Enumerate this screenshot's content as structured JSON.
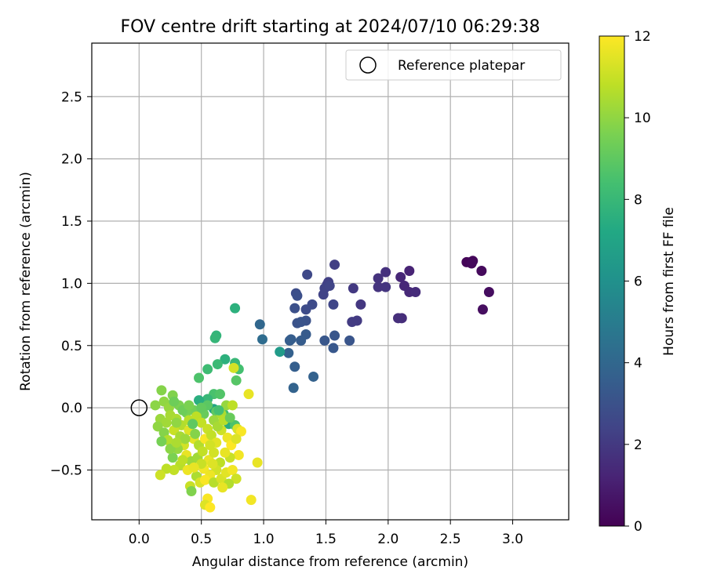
{
  "chart_data": {
    "type": "scatter",
    "title": "FOV centre drift starting at 2024/07/10 06:29:38",
    "xlabel": "Angular distance from reference (arcmin)",
    "ylabel": "Rotation from reference (arcmin)",
    "xlim": [
      -0.38,
      3.45
    ],
    "ylim": [
      -0.9,
      2.93
    ],
    "xticks": [
      0.0,
      0.5,
      1.0,
      1.5,
      2.0,
      2.5,
      3.0
    ],
    "xtick_labels": [
      "0.0",
      "0.5",
      "1.0",
      "1.5",
      "2.0",
      "2.5",
      "3.0"
    ],
    "yticks": [
      -0.5,
      0.0,
      0.5,
      1.0,
      1.5,
      2.0,
      2.5
    ],
    "ytick_labels": [
      "−0.5",
      "0.0",
      "0.5",
      "1.0",
      "1.5",
      "2.0",
      "2.5"
    ],
    "grid": true,
    "legend": {
      "position": "upper right",
      "entries": [
        "Reference platepar"
      ]
    },
    "reference_point": {
      "x": 0.0,
      "y": 0.0
    },
    "colorbar": {
      "label": "Hours from first FF file",
      "range": [
        0,
        12
      ],
      "ticks": [
        "0",
        "2",
        "4",
        "6",
        "8",
        "10",
        "12"
      ],
      "colormap": "viridis"
    },
    "points": [
      {
        "x": 2.66,
        "y": 1.17,
        "c": 0.1
      },
      {
        "x": 2.63,
        "y": 1.17,
        "c": 0.15
      },
      {
        "x": 2.68,
        "y": 1.18,
        "c": 0.2
      },
      {
        "x": 2.67,
        "y": 1.16,
        "c": 0.25
      },
      {
        "x": 2.75,
        "y": 1.1,
        "c": 0.3
      },
      {
        "x": 2.81,
        "y": 0.93,
        "c": 0.4
      },
      {
        "x": 2.76,
        "y": 0.79,
        "c": 0.45
      },
      {
        "x": 2.17,
        "y": 1.1,
        "c": 1.2
      },
      {
        "x": 2.1,
        "y": 1.05,
        "c": 1.3
      },
      {
        "x": 2.13,
        "y": 0.98,
        "c": 1.35
      },
      {
        "x": 2.17,
        "y": 0.93,
        "c": 1.4
      },
      {
        "x": 2.22,
        "y": 0.93,
        "c": 1.5
      },
      {
        "x": 2.11,
        "y": 0.72,
        "c": 1.55
      },
      {
        "x": 2.08,
        "y": 0.72,
        "c": 1.6
      },
      {
        "x": 1.98,
        "y": 1.09,
        "c": 1.7
      },
      {
        "x": 1.92,
        "y": 1.04,
        "c": 1.75
      },
      {
        "x": 1.92,
        "y": 0.97,
        "c": 1.8
      },
      {
        "x": 1.98,
        "y": 0.97,
        "c": 1.85
      },
      {
        "x": 1.78,
        "y": 0.83,
        "c": 1.9
      },
      {
        "x": 1.72,
        "y": 0.96,
        "c": 2.0
      },
      {
        "x": 1.75,
        "y": 0.7,
        "c": 2.05
      },
      {
        "x": 1.71,
        "y": 0.69,
        "c": 2.1
      },
      {
        "x": 1.57,
        "y": 1.15,
        "c": 2.2
      },
      {
        "x": 1.52,
        "y": 1.01,
        "c": 2.25
      },
      {
        "x": 1.51,
        "y": 0.99,
        "c": 2.3
      },
      {
        "x": 1.49,
        "y": 0.96,
        "c": 2.35
      },
      {
        "x": 1.48,
        "y": 0.91,
        "c": 2.4
      },
      {
        "x": 1.53,
        "y": 0.98,
        "c": 2.45
      },
      {
        "x": 1.56,
        "y": 0.83,
        "c": 2.5
      },
      {
        "x": 1.35,
        "y": 1.07,
        "c": 2.6
      },
      {
        "x": 1.39,
        "y": 0.83,
        "c": 2.7
      },
      {
        "x": 1.34,
        "y": 0.79,
        "c": 2.75
      },
      {
        "x": 1.26,
        "y": 0.92,
        "c": 2.8
      },
      {
        "x": 1.27,
        "y": 0.9,
        "c": 2.9
      },
      {
        "x": 1.25,
        "y": 0.8,
        "c": 2.95
      },
      {
        "x": 1.34,
        "y": 0.7,
        "c": 3.0
      },
      {
        "x": 1.27,
        "y": 0.68,
        "c": 3.05
      },
      {
        "x": 1.3,
        "y": 0.69,
        "c": 3.1
      },
      {
        "x": 1.69,
        "y": 0.54,
        "c": 3.15
      },
      {
        "x": 1.57,
        "y": 0.58,
        "c": 3.2
      },
      {
        "x": 1.49,
        "y": 0.54,
        "c": 3.25
      },
      {
        "x": 1.56,
        "y": 0.48,
        "c": 3.3
      },
      {
        "x": 1.34,
        "y": 0.59,
        "c": 3.4
      },
      {
        "x": 1.3,
        "y": 0.54,
        "c": 3.45
      },
      {
        "x": 1.22,
        "y": 0.55,
        "c": 3.5
      },
      {
        "x": 1.21,
        "y": 0.54,
        "c": 3.55
      },
      {
        "x": 1.25,
        "y": 0.33,
        "c": 3.6
      },
      {
        "x": 1.2,
        "y": 0.44,
        "c": 3.7
      },
      {
        "x": 1.4,
        "y": 0.25,
        "c": 3.75
      },
      {
        "x": 1.24,
        "y": 0.16,
        "c": 3.8
      },
      {
        "x": 0.97,
        "y": 0.67,
        "c": 4.0
      },
      {
        "x": 0.99,
        "y": 0.55,
        "c": 4.2
      },
      {
        "x": 1.13,
        "y": 0.45,
        "c": 6.5
      },
      {
        "x": 0.77,
        "y": 0.8,
        "c": 7.6
      },
      {
        "x": 0.62,
        "y": 0.58,
        "c": 7.8
      },
      {
        "x": 0.61,
        "y": 0.56,
        "c": 7.9
      },
      {
        "x": 0.69,
        "y": 0.39,
        "c": 7.6
      },
      {
        "x": 0.77,
        "y": 0.36,
        "c": 8.0
      },
      {
        "x": 0.63,
        "y": 0.35,
        "c": 8.1
      },
      {
        "x": 0.55,
        "y": 0.31,
        "c": 8.2
      },
      {
        "x": 0.8,
        "y": 0.31,
        "c": 8.4
      },
      {
        "x": 0.48,
        "y": 0.24,
        "c": 8.6
      },
      {
        "x": 0.78,
        "y": 0.22,
        "c": 8.8
      },
      {
        "x": 0.6,
        "y": 0.11,
        "c": 8.5
      },
      {
        "x": 0.65,
        "y": 0.11,
        "c": 8.7
      },
      {
        "x": 0.55,
        "y": 0.07,
        "c": 8.0
      },
      {
        "x": 0.48,
        "y": 0.06,
        "c": 7.5
      },
      {
        "x": 0.76,
        "y": 0.32,
        "c": 11.2
      },
      {
        "x": 0.88,
        "y": 0.11,
        "c": 11.6
      },
      {
        "x": 0.6,
        "y": -0.01,
        "c": 7.0
      },
      {
        "x": 0.72,
        "y": -0.13,
        "c": 7.4
      },
      {
        "x": 0.77,
        "y": -0.14,
        "c": 8.6
      },
      {
        "x": 0.68,
        "y": -0.05,
        "c": 8.2
      },
      {
        "x": 0.62,
        "y": -0.03,
        "c": 9.0
      },
      {
        "x": 0.52,
        "y": -0.05,
        "c": 9.2
      },
      {
        "x": 0.44,
        "y": -0.02,
        "c": 9.4
      },
      {
        "x": 0.38,
        "y": -0.04,
        "c": 9.5
      },
      {
        "x": 0.32,
        "y": 0.02,
        "c": 9.6
      },
      {
        "x": 0.27,
        "y": 0.1,
        "c": 9.7
      },
      {
        "x": 0.18,
        "y": 0.14,
        "c": 9.8
      },
      {
        "x": 0.13,
        "y": 0.02,
        "c": 9.9
      },
      {
        "x": 0.2,
        "y": 0.05,
        "c": 10.0
      },
      {
        "x": 0.24,
        "y": 0.0,
        "c": 10.1
      },
      {
        "x": 0.17,
        "y": -0.09,
        "c": 10.2
      },
      {
        "x": 0.22,
        "y": -0.12,
        "c": 10.3
      },
      {
        "x": 0.25,
        "y": -0.06,
        "c": 10.4
      },
      {
        "x": 0.3,
        "y": -0.09,
        "c": 10.5
      },
      {
        "x": 0.34,
        "y": -0.14,
        "c": 10.6
      },
      {
        "x": 0.4,
        "y": -0.1,
        "c": 10.7
      },
      {
        "x": 0.46,
        "y": -0.07,
        "c": 10.8
      },
      {
        "x": 0.5,
        "y": -0.12,
        "c": 10.9
      },
      {
        "x": 0.55,
        "y": -0.17,
        "c": 11.0
      },
      {
        "x": 0.6,
        "y": -0.1,
        "c": 10.2
      },
      {
        "x": 0.66,
        "y": -0.05,
        "c": 10.5
      },
      {
        "x": 0.7,
        "y": 0.02,
        "c": 10.1
      },
      {
        "x": 0.75,
        "y": 0.02,
        "c": 10.8
      },
      {
        "x": 0.15,
        "y": -0.15,
        "c": 10.0
      },
      {
        "x": 0.2,
        "y": -0.2,
        "c": 9.8
      },
      {
        "x": 0.23,
        "y": -0.26,
        "c": 10.6
      },
      {
        "x": 0.18,
        "y": -0.27,
        "c": 9.5
      },
      {
        "x": 0.28,
        "y": -0.18,
        "c": 11.0
      },
      {
        "x": 0.33,
        "y": -0.23,
        "c": 10.4
      },
      {
        "x": 0.36,
        "y": -0.3,
        "c": 11.2
      },
      {
        "x": 0.31,
        "y": -0.33,
        "c": 10.1
      },
      {
        "x": 0.27,
        "y": -0.4,
        "c": 9.6
      },
      {
        "x": 0.33,
        "y": -0.46,
        "c": 10.7
      },
      {
        "x": 0.28,
        "y": -0.5,
        "c": 10.9
      },
      {
        "x": 0.22,
        "y": -0.49,
        "c": 10.8
      },
      {
        "x": 0.17,
        "y": -0.54,
        "c": 11.1
      },
      {
        "x": 0.4,
        "y": -0.18,
        "c": 11.4
      },
      {
        "x": 0.44,
        "y": -0.25,
        "c": 11.5
      },
      {
        "x": 0.38,
        "y": -0.38,
        "c": 11.6
      },
      {
        "x": 0.42,
        "y": -0.43,
        "c": 10.2
      },
      {
        "x": 0.39,
        "y": -0.5,
        "c": 11.7
      },
      {
        "x": 0.46,
        "y": -0.55,
        "c": 10.5
      },
      {
        "x": 0.41,
        "y": -0.63,
        "c": 11.0
      },
      {
        "x": 0.42,
        "y": -0.67,
        "c": 9.7
      },
      {
        "x": 0.49,
        "y": -0.6,
        "c": 11.3
      },
      {
        "x": 0.52,
        "y": -0.49,
        "c": 11.8
      },
      {
        "x": 0.56,
        "y": -0.42,
        "c": 11.6
      },
      {
        "x": 0.6,
        "y": -0.36,
        "c": 11.2
      },
      {
        "x": 0.48,
        "y": -0.3,
        "c": 10.6
      },
      {
        "x": 0.53,
        "y": -0.25,
        "c": 11.9
      },
      {
        "x": 0.58,
        "y": -0.22,
        "c": 10.9
      },
      {
        "x": 0.62,
        "y": -0.28,
        "c": 11.5
      },
      {
        "x": 0.66,
        "y": -0.18,
        "c": 11.1
      },
      {
        "x": 0.71,
        "y": -0.24,
        "c": 11.7
      },
      {
        "x": 0.74,
        "y": -0.3,
        "c": 12.0
      },
      {
        "x": 0.79,
        "y": -0.17,
        "c": 11.3
      },
      {
        "x": 0.82,
        "y": -0.19,
        "c": 11.9
      },
      {
        "x": 0.78,
        "y": -0.25,
        "c": 11.4
      },
      {
        "x": 0.8,
        "y": -0.38,
        "c": 11.8
      },
      {
        "x": 0.73,
        "y": -0.4,
        "c": 11.0
      },
      {
        "x": 0.69,
        "y": -0.36,
        "c": 11.6
      },
      {
        "x": 0.65,
        "y": -0.44,
        "c": 10.8
      },
      {
        "x": 0.62,
        "y": -0.5,
        "c": 11.2
      },
      {
        "x": 0.57,
        "y": -0.54,
        "c": 11.7
      },
      {
        "x": 0.53,
        "y": -0.58,
        "c": 11.9
      },
      {
        "x": 0.6,
        "y": -0.6,
        "c": 10.7
      },
      {
        "x": 0.66,
        "y": -0.57,
        "c": 11.3
      },
      {
        "x": 0.7,
        "y": -0.52,
        "c": 11.5
      },
      {
        "x": 0.75,
        "y": -0.5,
        "c": 11.8
      },
      {
        "x": 0.78,
        "y": -0.57,
        "c": 11.1
      },
      {
        "x": 0.72,
        "y": -0.61,
        "c": 10.6
      },
      {
        "x": 0.67,
        "y": -0.64,
        "c": 11.6
      },
      {
        "x": 0.55,
        "y": -0.73,
        "c": 11.9
      },
      {
        "x": 0.53,
        "y": -0.78,
        "c": 11.4
      },
      {
        "x": 0.57,
        "y": -0.8,
        "c": 12.0
      },
      {
        "x": 0.95,
        "y": -0.44,
        "c": 11.6
      },
      {
        "x": 0.9,
        "y": -0.74,
        "c": 11.8
      },
      {
        "x": 0.43,
        "y": -0.13,
        "c": 9.0
      },
      {
        "x": 0.35,
        "y": -0.02,
        "c": 9.3
      },
      {
        "x": 0.3,
        "y": -0.12,
        "c": 10.0
      },
      {
        "x": 0.25,
        "y": -0.33,
        "c": 9.9
      },
      {
        "x": 0.47,
        "y": -0.4,
        "c": 10.3
      },
      {
        "x": 0.51,
        "y": -0.35,
        "c": 10.9
      },
      {
        "x": 0.57,
        "y": -0.3,
        "c": 11.2
      },
      {
        "x": 0.63,
        "y": -0.15,
        "c": 10.4
      },
      {
        "x": 0.68,
        "y": -0.1,
        "c": 10.7
      },
      {
        "x": 0.45,
        "y": -0.21,
        "c": 9.8
      },
      {
        "x": 0.37,
        "y": -0.25,
        "c": 10.2
      },
      {
        "x": 0.3,
        "y": -0.28,
        "c": 10.5
      },
      {
        "x": 0.59,
        "y": -0.45,
        "c": 11.4
      },
      {
        "x": 0.5,
        "y": -0.45,
        "c": 11.0
      },
      {
        "x": 0.44,
        "y": -0.48,
        "c": 11.6
      },
      {
        "x": 0.35,
        "y": -0.42,
        "c": 10.8
      },
      {
        "x": 0.73,
        "y": -0.08,
        "c": 9.2
      },
      {
        "x": 0.64,
        "y": -0.02,
        "c": 8.4
      },
      {
        "x": 0.55,
        "y": 0.02,
        "c": 8.9
      },
      {
        "x": 0.5,
        "y": 0.0,
        "c": 9.1
      },
      {
        "x": 0.4,
        "y": 0.02,
        "c": 9.6
      },
      {
        "x": 0.28,
        "y": 0.05,
        "c": 9.3
      }
    ]
  }
}
